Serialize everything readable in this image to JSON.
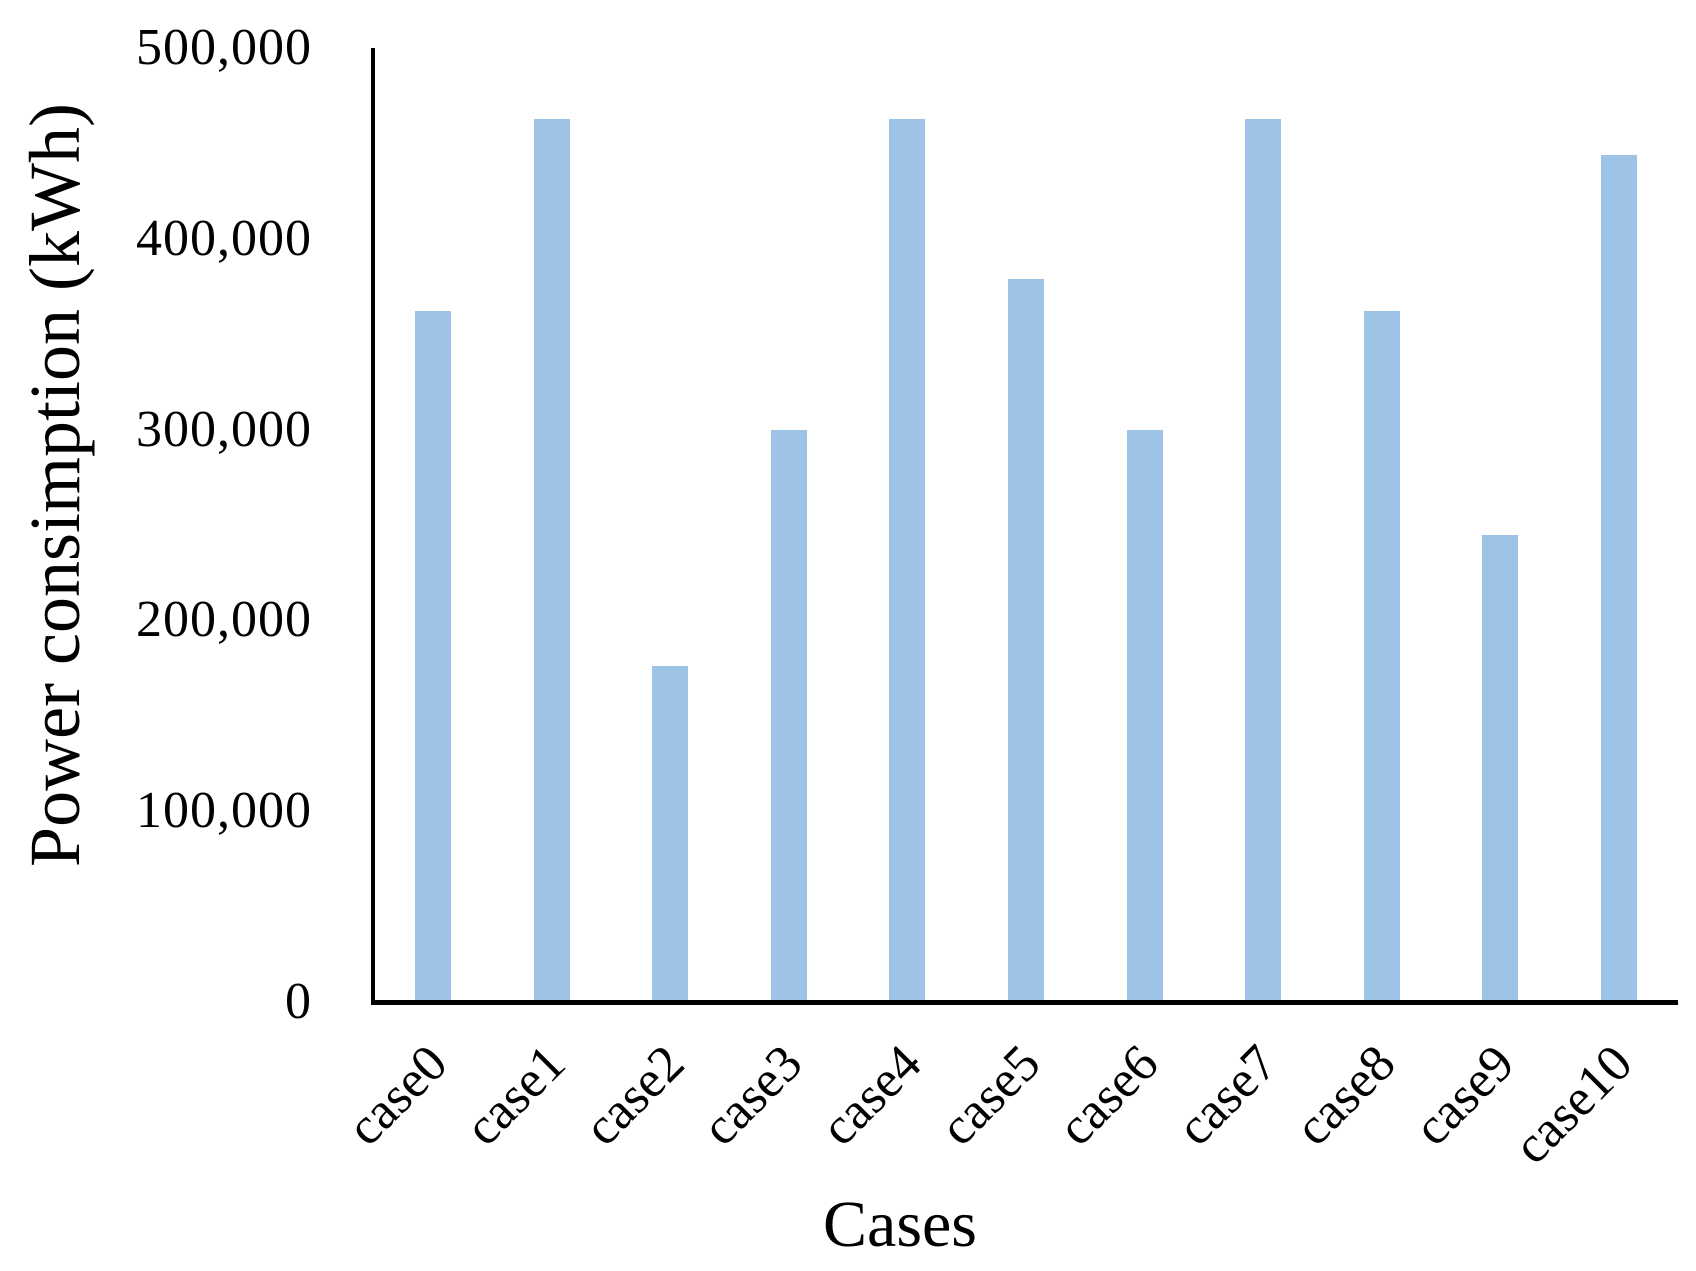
{
  "chart_data": {
    "type": "bar",
    "title": "",
    "xlabel": "Cases",
    "ylabel": "Power consimption (kWh)",
    "categories": [
      "case0",
      "case1",
      "case2",
      "case3",
      "case4",
      "case5",
      "case6",
      "case7",
      "case8",
      "case9",
      "case10"
    ],
    "values": [
      362000,
      463000,
      176000,
      300000,
      463000,
      379000,
      300000,
      463000,
      362000,
      245000,
      444000
    ],
    "ylim": [
      0,
      500000
    ],
    "ytick_values": [
      0,
      100000,
      200000,
      300000,
      400000,
      500000
    ],
    "ytick_labels": [
      "0",
      "100,000",
      "200,000",
      "300,000",
      "400,000",
      "500,000"
    ],
    "grid": false,
    "legend": false
  },
  "colors": {
    "bar": "#9DC3E6",
    "axis": "#000000",
    "text": "#000000",
    "background": "#FFFFFF"
  }
}
